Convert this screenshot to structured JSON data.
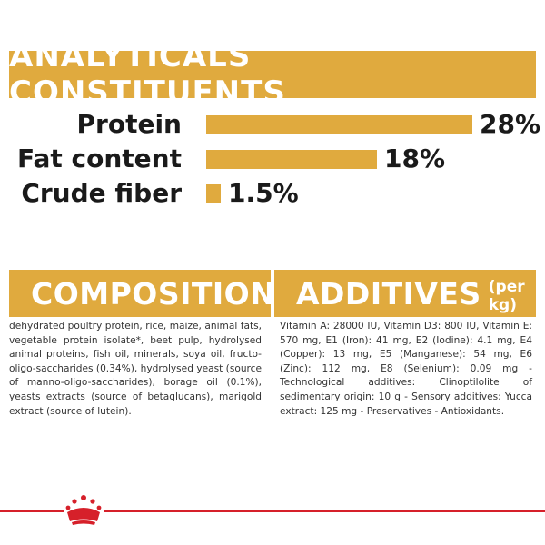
{
  "analytics": {
    "title": "ANALYTICALS CONSTITUENTS",
    "rows": [
      {
        "label": "Protein",
        "value": "28%",
        "percent": 28
      },
      {
        "label": "Fat content",
        "value": "18%",
        "percent": 18
      },
      {
        "label": "Crude fiber",
        "value": "1.5%",
        "percent": 1.5
      }
    ]
  },
  "composition": {
    "title": "COMPOSITION",
    "text": "dehydrated poultry protein, rice, maize, animal fats, vegetable protein isolate*, beet pulp, hydrolysed animal proteins, fish oil, minerals, soya oil, fructo-oligo-saccharides (0.34%), hydrolysed yeast (source of manno-oligo-saccharides), borage oil (0.1%), yeasts extracts (source of betaglucans), marigold extract (source of lutein)."
  },
  "additives": {
    "title": "ADDITIVES",
    "subtitle": "(per kg)",
    "text": "Vitamin A: 28000 IU, Vitamin D3: 800 IU, Vitamin E: 570 mg, E1 (Iron): 41 mg, E2 (Iodine): 4.1 mg, E4 (Copper): 13 mg, E5 (Manganese): 54 mg, E6 (Zinc): 112 mg, E8 (Selenium): 0.09 mg - Technological additives: Clinoptilolite of sedimentary origin: 10 g - Sensory additives: Yucca extract: 125 mg - Preservatives - Antioxidants."
  },
  "colors": {
    "accent": "#e0aa3e",
    "brand_red": "#d6202a"
  },
  "icons": {
    "brand_logo": "crown-logo-icon"
  }
}
